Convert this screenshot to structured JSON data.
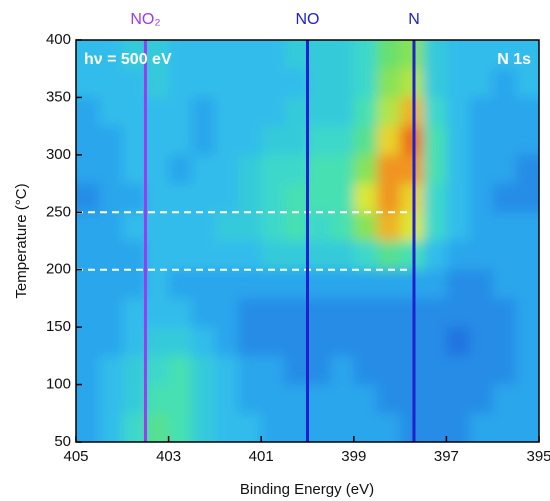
{
  "chart_data": {
    "type": "heatmap",
    "xlabel": "Binding Energy (eV)",
    "ylabel": "Temperature (°C)",
    "annotations": [
      {
        "text": "hν = 500 eV",
        "corner": "top-left"
      },
      {
        "text": "N 1s",
        "corner": "top-right"
      }
    ],
    "xlim": [
      405,
      395
    ],
    "ylim": [
      50,
      400
    ],
    "xticks": [
      405,
      403,
      401,
      399,
      397,
      395
    ],
    "yticks": [
      50,
      100,
      150,
      200,
      250,
      300,
      350,
      400
    ],
    "xbins": [
      405,
      404.5,
      404,
      403.5,
      403,
      402.5,
      402,
      401.5,
      401,
      400.5,
      400,
      399.5,
      399,
      398.5,
      398,
      397.5,
      397,
      396.5,
      396,
      395.5,
      395
    ],
    "ybins": [
      400,
      375,
      350,
      325,
      300,
      275,
      250,
      225,
      200,
      175,
      150,
      125,
      100,
      75,
      50
    ],
    "colorscale": [
      "#1f2fb0",
      "#1f6fe0",
      "#2fb8f0",
      "#3fe0c0",
      "#6fe060",
      "#e8e830",
      "#f09020",
      "#e02010"
    ],
    "z": [
      [
        0.3,
        0.3,
        0.35,
        0.35,
        0.3,
        0.3,
        0.3,
        0.3,
        0.3,
        0.35,
        0.35,
        0.35,
        0.4,
        0.55,
        0.6,
        0.35,
        0.3,
        0.3,
        0.3,
        0.3
      ],
      [
        0.3,
        0.3,
        0.3,
        0.35,
        0.3,
        0.3,
        0.3,
        0.3,
        0.3,
        0.3,
        0.35,
        0.35,
        0.4,
        0.6,
        0.65,
        0.35,
        0.3,
        0.3,
        0.25,
        0.3
      ],
      [
        0.25,
        0.3,
        0.3,
        0.3,
        0.3,
        0.25,
        0.3,
        0.3,
        0.3,
        0.35,
        0.35,
        0.35,
        0.45,
        0.65,
        0.8,
        0.4,
        0.3,
        0.25,
        0.25,
        0.25
      ],
      [
        0.25,
        0.25,
        0.3,
        0.3,
        0.3,
        0.25,
        0.3,
        0.3,
        0.35,
        0.35,
        0.4,
        0.4,
        0.5,
        0.75,
        0.9,
        0.45,
        0.3,
        0.25,
        0.25,
        0.25
      ],
      [
        0.25,
        0.25,
        0.3,
        0.3,
        0.25,
        0.3,
        0.3,
        0.35,
        0.4,
        0.4,
        0.45,
        0.45,
        0.6,
        0.85,
        0.85,
        0.45,
        0.3,
        0.25,
        0.25,
        0.2
      ],
      [
        0.2,
        0.25,
        0.25,
        0.3,
        0.3,
        0.3,
        0.3,
        0.35,
        0.4,
        0.45,
        0.45,
        0.45,
        0.7,
        0.85,
        0.75,
        0.4,
        0.3,
        0.25,
        0.2,
        0.2
      ],
      [
        0.25,
        0.25,
        0.3,
        0.3,
        0.3,
        0.3,
        0.35,
        0.35,
        0.4,
        0.45,
        0.4,
        0.45,
        0.6,
        0.8,
        0.7,
        0.4,
        0.3,
        0.25,
        0.25,
        0.25
      ],
      [
        0.25,
        0.25,
        0.25,
        0.3,
        0.3,
        0.3,
        0.3,
        0.3,
        0.35,
        0.35,
        0.35,
        0.35,
        0.4,
        0.5,
        0.45,
        0.3,
        0.25,
        0.25,
        0.25,
        0.25
      ],
      [
        0.25,
        0.25,
        0.25,
        0.3,
        0.25,
        0.25,
        0.25,
        0.25,
        0.25,
        0.25,
        0.25,
        0.25,
        0.25,
        0.25,
        0.25,
        0.25,
        0.2,
        0.2,
        0.25,
        0.25
      ],
      [
        0.25,
        0.25,
        0.3,
        0.3,
        0.3,
        0.25,
        0.25,
        0.2,
        0.2,
        0.2,
        0.2,
        0.2,
        0.2,
        0.2,
        0.2,
        0.2,
        0.2,
        0.2,
        0.2,
        0.25
      ],
      [
        0.25,
        0.25,
        0.3,
        0.35,
        0.35,
        0.3,
        0.25,
        0.2,
        0.2,
        0.2,
        0.2,
        0.2,
        0.2,
        0.2,
        0.2,
        0.2,
        0.15,
        0.2,
        0.2,
        0.25
      ],
      [
        0.25,
        0.3,
        0.35,
        0.4,
        0.45,
        0.35,
        0.3,
        0.25,
        0.25,
        0.2,
        0.2,
        0.25,
        0.2,
        0.2,
        0.2,
        0.2,
        0.2,
        0.2,
        0.2,
        0.25
      ],
      [
        0.25,
        0.3,
        0.35,
        0.45,
        0.45,
        0.35,
        0.3,
        0.25,
        0.25,
        0.25,
        0.25,
        0.25,
        0.25,
        0.2,
        0.2,
        0.2,
        0.2,
        0.2,
        0.25,
        0.25
      ],
      [
        0.25,
        0.3,
        0.4,
        0.5,
        0.45,
        0.35,
        0.3,
        0.3,
        0.25,
        0.25,
        0.25,
        0.25,
        0.25,
        0.25,
        0.2,
        0.2,
        0.2,
        0.25,
        0.25,
        0.25
      ]
    ],
    "vlines": [
      {
        "name": "NO₂",
        "x": 403.5,
        "color": "#9a3cf0"
      },
      {
        "name": "NO",
        "x": 400,
        "color": "#2020d0"
      },
      {
        "name": "N",
        "x": 397.7,
        "color": "#2020d0"
      }
    ],
    "hlines": [
      {
        "y": 250,
        "span": [
          405,
          397.8
        ],
        "color": "#ffffff"
      },
      {
        "y": 200,
        "span": [
          405,
          397.8
        ],
        "color": "#ffffff"
      }
    ]
  }
}
